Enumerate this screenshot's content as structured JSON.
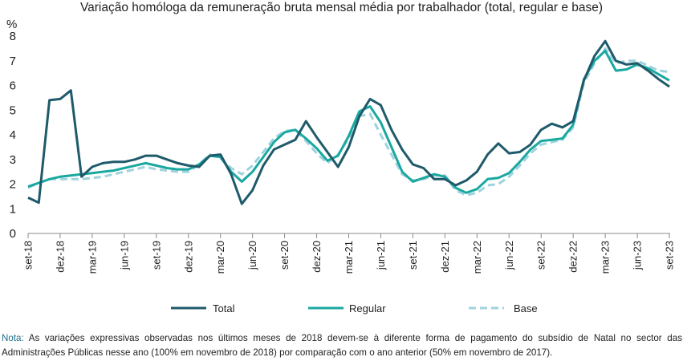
{
  "chart_data": {
    "type": "line",
    "title": "Variação homóloga da remuneração bruta mensal média por trabalhador (total, regular e base)",
    "ylabel": "%",
    "ylim": [
      0,
      8
    ],
    "y_ticks": [
      "0",
      "1",
      "2",
      "3",
      "4",
      "5",
      "6",
      "7",
      "8"
    ],
    "x_tick_labels": [
      "set-18",
      "dez-18",
      "mar-19",
      "jun-19",
      "set-19",
      "dez-19",
      "mar-20",
      "jun-20",
      "set-20",
      "dez-20",
      "mar-21",
      "jun-21",
      "set-21",
      "dez-21",
      "mar-22",
      "jun-22",
      "set-22",
      "dez-22",
      "mar-23",
      "jun-23",
      "set-23"
    ],
    "grid": "none",
    "legend_position": "bottom",
    "series": [
      {
        "name": "Total",
        "color": "#1f5a6b",
        "dash": "solid",
        "values": [
          1.45,
          1.25,
          5.4,
          5.45,
          5.8,
          2.3,
          2.7,
          2.85,
          2.9,
          2.9,
          3.0,
          3.15,
          3.15,
          3.0,
          2.85,
          2.75,
          2.7,
          3.15,
          3.2,
          2.4,
          1.2,
          1.75,
          2.75,
          3.4,
          3.6,
          3.8,
          4.55,
          3.9,
          3.3,
          2.7,
          3.5,
          4.75,
          5.45,
          5.2,
          4.2,
          3.4,
          2.8,
          2.65,
          2.2,
          2.2,
          1.95,
          2.15,
          2.5,
          3.2,
          3.65,
          3.25,
          3.3,
          3.6,
          4.2,
          4.45,
          4.3,
          4.55,
          6.2,
          7.2,
          7.8,
          7.0,
          6.85,
          6.9,
          6.6,
          6.25,
          5.95
        ]
      },
      {
        "name": "Regular",
        "color": "#1aa8a0",
        "dash": "solid",
        "values": [
          1.9,
          2.05,
          2.2,
          2.3,
          2.35,
          2.4,
          2.45,
          2.5,
          2.55,
          2.65,
          2.75,
          2.85,
          2.75,
          2.65,
          2.6,
          2.6,
          2.8,
          3.15,
          3.1,
          2.5,
          2.1,
          2.5,
          3.1,
          3.7,
          4.1,
          4.2,
          3.85,
          3.45,
          2.95,
          3.15,
          3.95,
          4.95,
          5.15,
          4.5,
          3.5,
          2.5,
          2.1,
          2.25,
          2.4,
          2.3,
          1.85,
          1.65,
          1.8,
          2.2,
          2.25,
          2.45,
          2.9,
          3.4,
          3.75,
          3.8,
          3.85,
          4.4,
          6.25,
          7.0,
          7.4,
          6.6,
          6.65,
          6.85,
          6.7,
          6.45,
          6.2
        ]
      },
      {
        "name": "Base",
        "color": "#9fd3dd",
        "dash": "dashed",
        "values": [
          1.85,
          2.05,
          2.2,
          2.2,
          2.2,
          2.2,
          2.25,
          2.3,
          2.4,
          2.5,
          2.6,
          2.7,
          2.6,
          2.55,
          2.5,
          2.5,
          2.8,
          3.2,
          3.05,
          2.65,
          2.4,
          2.75,
          3.3,
          3.85,
          4.15,
          4.2,
          3.75,
          3.25,
          2.85,
          3.2,
          3.85,
          4.75,
          4.85,
          4.0,
          3.2,
          2.4,
          2.15,
          2.2,
          2.35,
          2.35,
          1.75,
          1.55,
          1.65,
          1.95,
          2.0,
          2.3,
          2.75,
          3.25,
          3.6,
          3.7,
          3.8,
          4.3,
          6.1,
          6.9,
          7.5,
          6.9,
          7.0,
          7.0,
          6.8,
          6.6,
          6.55
        ]
      }
    ]
  },
  "note": {
    "label": "Nota:",
    "text": " As variações expressivas observadas nos últimos meses de 2018 devem-se à diferente forma de pagamento do subsídio de Natal no sector das Administrações Públicas nesse ano (100% em novembro de 2018) por comparação com o ano anterior (50% em novembro de 2017)."
  }
}
